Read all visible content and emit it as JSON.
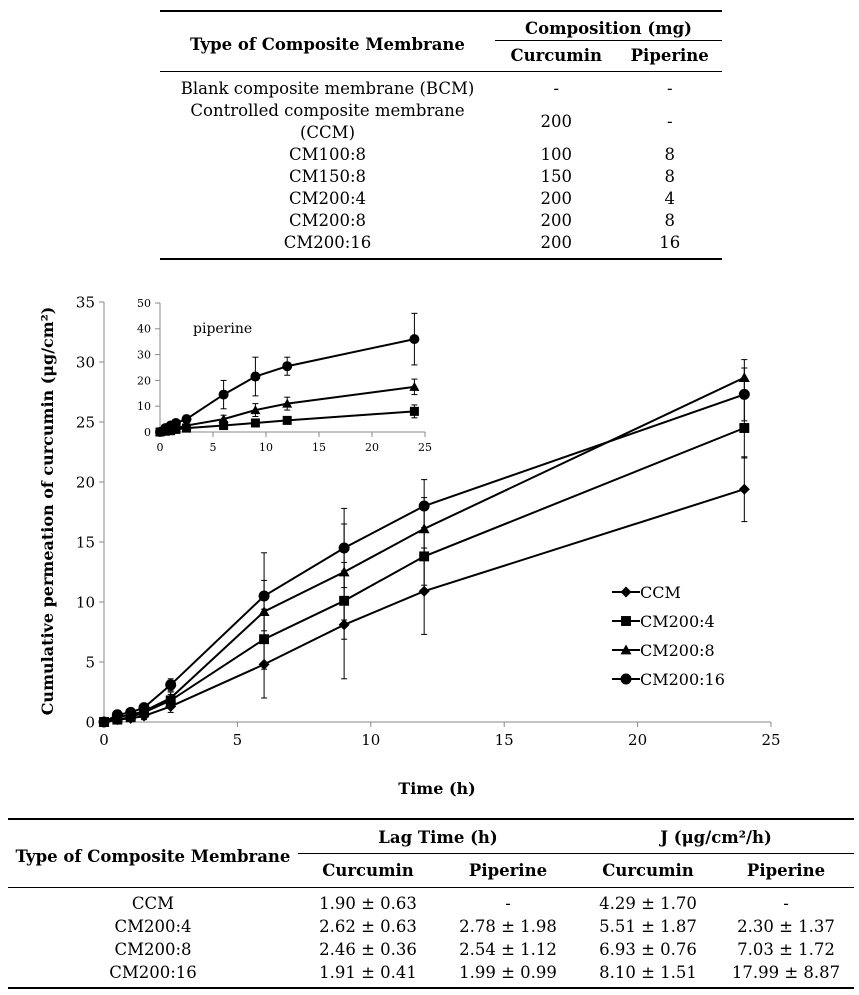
{
  "table1": {
    "col_type": "Type of Composite Membrane",
    "col_comp": "Composition (mg)",
    "col_cur": "Curcumin",
    "col_pip": "Piperine",
    "rows": [
      {
        "name": "Blank composite membrane (BCM)",
        "cur": "-",
        "pip": "-"
      },
      {
        "name": "Controlled composite membrane (CCM)",
        "cur": "200",
        "pip": "-"
      },
      {
        "name": "CM100:8",
        "cur": "100",
        "pip": "8"
      },
      {
        "name": "CM150:8",
        "cur": "150",
        "pip": "8"
      },
      {
        "name": "CM200:4",
        "cur": "200",
        "pip": "4"
      },
      {
        "name": "CM200:8",
        "cur": "200",
        "pip": "8"
      },
      {
        "name": "CM200:16",
        "cur": "200",
        "pip": "16"
      }
    ]
  },
  "chart_data": [
    {
      "type": "line",
      "xlabel": "Time (h)",
      "ylabel": "Cumulative permeation of curcumin (μg/cm²)",
      "xlim": [
        0,
        25
      ],
      "ylim": [
        0,
        35
      ],
      "xticks": [
        "0",
        "5",
        "10",
        "15",
        "20",
        "25"
      ],
      "yticks": [
        "0",
        "5",
        "10",
        "15",
        "20",
        "25",
        "30",
        "35"
      ],
      "x": [
        0,
        0.5,
        1,
        1.5,
        2.5,
        6,
        9,
        12,
        24
      ],
      "legend_position": "right",
      "series": [
        {
          "name": "CCM",
          "marker": "diamond",
          "values": [
            0,
            0.2,
            0.3,
            0.5,
            1.3,
            4.8,
            8.1,
            10.9,
            19.4
          ],
          "errors": [
            0,
            0.1,
            0.2,
            0.3,
            0.5,
            2.8,
            4.5,
            3.6,
            2.7
          ]
        },
        {
          "name": "CM200:4",
          "marker": "square",
          "values": [
            0,
            0.2,
            0.4,
            0.8,
            1.8,
            6.9,
            10.1,
            13.8,
            24.5
          ],
          "errors": [
            0,
            0.1,
            0.2,
            0.3,
            0.5,
            2.5,
            3.2,
            2.4,
            2.5
          ]
        },
        {
          "name": "CM200:8",
          "marker": "triangle",
          "values": [
            0,
            0.4,
            0.6,
            0.9,
            2.0,
            9.2,
            12.5,
            16.1,
            28.7
          ],
          "errors": [
            0,
            0.1,
            0.2,
            0.3,
            0.5,
            2.6,
            4.0,
            2.6,
            1.5
          ]
        },
        {
          "name": "CM200:16",
          "marker": "circle",
          "values": [
            0,
            0.6,
            0.8,
            1.2,
            3.1,
            10.5,
            14.5,
            18.0,
            27.3
          ],
          "errors": [
            0,
            0.1,
            0.2,
            0.3,
            0.5,
            3.6,
            3.3,
            2.2,
            2.2
          ]
        }
      ]
    },
    {
      "type": "line",
      "title": "piperine",
      "xlim": [
        0,
        25
      ],
      "ylim": [
        0,
        50
      ],
      "xticks": [
        "0",
        "5",
        "10",
        "15",
        "20",
        "25"
      ],
      "yticks": [
        "0",
        "10",
        "20",
        "30",
        "40",
        "50"
      ],
      "x": [
        0,
        0.5,
        1,
        1.5,
        2.5,
        6,
        9,
        12,
        24
      ],
      "series": [
        {
          "marker": "square",
          "values": [
            0,
            0.3,
            0.5,
            1.0,
            1.5,
            2.5,
            3.5,
            4.5,
            8.0
          ],
          "errors": [
            0,
            0.2,
            0.3,
            0.3,
            0.5,
            1.0,
            1.0,
            1.0,
            2.5
          ]
        },
        {
          "marker": "triangle",
          "values": [
            0,
            0.5,
            1.0,
            1.5,
            2.5,
            5.0,
            8.5,
            11.0,
            17.5
          ],
          "errors": [
            0,
            0.3,
            0.5,
            0.5,
            0.8,
            1.5,
            2.5,
            2.5,
            3.0
          ]
        },
        {
          "marker": "circle",
          "values": [
            0,
            1.5,
            2.5,
            3.5,
            5.0,
            14.5,
            21.5,
            25.5,
            36.0
          ],
          "errors": [
            0,
            0.5,
            1.0,
            1.0,
            1.5,
            5.5,
            7.5,
            3.5,
            10.0
          ]
        }
      ]
    }
  ],
  "table2": {
    "col_type": "Type of Composite Membrane",
    "col_lag": "Lag Time (h)",
    "col_j": "J (μg/cm²/h)",
    "col_cur": "Curcumin",
    "col_pip": "Piperine",
    "rows": [
      {
        "name": "CCM",
        "lag_cur": "1.90 ± 0.63",
        "lag_pip": "-",
        "j_cur": "4.29 ± 1.70",
        "j_pip": "-"
      },
      {
        "name": "CM200:4",
        "lag_cur": "2.62 ± 0.63",
        "lag_pip": "2.78 ± 1.98",
        "j_cur": "5.51 ± 1.87",
        "j_pip": "2.30 ± 1.37"
      },
      {
        "name": "CM200:8",
        "lag_cur": "2.46 ± 0.36",
        "lag_pip": "2.54 ± 1.12",
        "j_cur": "6.93 ± 0.76",
        "j_pip": "7.03 ± 1.72"
      },
      {
        "name": "CM200:16",
        "lag_cur": "1.91 ± 0.41",
        "lag_pip": "1.99 ± 0.99",
        "j_cur": "8.10 ± 1.51",
        "j_pip": "17.99 ± 8.87"
      }
    ]
  }
}
